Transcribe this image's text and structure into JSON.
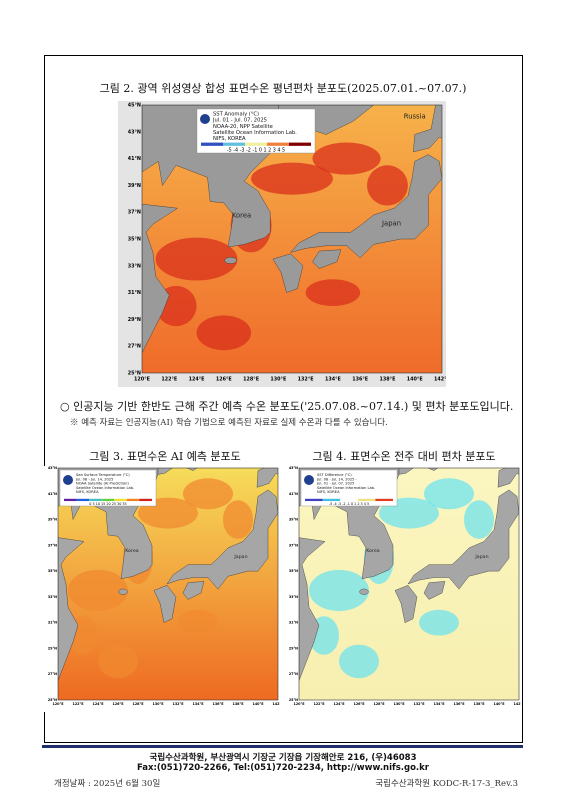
{
  "figure2": {
    "title": "그림 2. 광역 위성영상 합성 표면수온 평년편차 분포도(2025.07.01.~07.07.)",
    "legend": [
      "SST Anomaly (°C)",
      "Jul. 01 - Jul. 07, 2025",
      "NOAA-20, NPP Satellite",
      "Satellite Ocean Information Lab.",
      "NIFS, KOREA"
    ],
    "scale": "-5 -4 -3 -2 -1 0 1 2 3 4 5",
    "labels": [
      "Russia",
      "Korea",
      "Japan"
    ],
    "lat_ticks": [
      "45°N",
      "43°N",
      "41°N",
      "39°N",
      "37°N",
      "35°N",
      "33°N",
      "31°N",
      "29°N",
      "27°N",
      "25°N"
    ],
    "lon_ticks": [
      "120°E",
      "122°E",
      "124°E",
      "126°E",
      "128°E",
      "130°E",
      "132°E",
      "134°E",
      "136°E",
      "138°E",
      "140°E",
      "142°E"
    ]
  },
  "bullet": "인공지능 기반 한반도 근해 주간 예측 수온 분포도('25.07.08.~07.14.) 및 편차 분포도입니다.",
  "note": "※ 예측 자료는 인공지능(AI) 학습 기법으로 예측된 자료로 실제 수온과 다를 수 있습니다.",
  "figure3": {
    "title": "그림 3. 표면수온 AI 예측 분포도",
    "legend": [
      "Sea Surface Temperature (°C)",
      "Jul. 08 - Jul. 14, 2025",
      "NOAA Satellite (AI Prediction)",
      "Satellite Ocean Information Lab.",
      "NIFS, KOREA"
    ],
    "scale": "0 5 10 15 20 25 30 35",
    "labels": [
      "Korea",
      "Japan"
    ],
    "lat_ticks": [
      "43°N",
      "41°N",
      "39°N",
      "37°N",
      "35°N",
      "33°N",
      "31°N",
      "29°N",
      "27°N",
      "25°N"
    ],
    "lon_ticks": [
      "120°E",
      "122°E",
      "124°E",
      "126°E",
      "128°E",
      "130°E",
      "132°E",
      "134°E",
      "136°E",
      "138°E",
      "140°E",
      "142°E"
    ]
  },
  "figure4": {
    "title": "그림 4. 표면수온 전주 대비 편차 분포도",
    "legend": [
      "SST Difference (°C)",
      "Jul. 08 - Jul. 14, 2025 -",
      "Jul. 01 - Jul. 07, 2025",
      "Satellite Ocean Information Lab.",
      "NIFS, KOREA"
    ],
    "scale": "-5 -4 -3 -2 -1 0 1 2 3 4 5",
    "labels": [
      "Korea",
      "Japan"
    ],
    "lat_ticks": [
      "43°N",
      "41°N",
      "39°N",
      "37°N",
      "35°N",
      "33°N",
      "31°N",
      "29°N",
      "27°N",
      "25°N"
    ],
    "lon_ticks": [
      "120°E",
      "122°E",
      "124°E",
      "126°E",
      "128°E",
      "130°E",
      "132°E",
      "134°E",
      "136°E",
      "138°E",
      "140°E",
      "142°E"
    ]
  },
  "footer": {
    "line1": "국립수산과학원, 부산광역시 기장군 기장읍 기장해안로 216, (우)46083",
    "line2": "Fax:(051)720-2266, Tel:(051)720-2234, http://www.nifs.go.kr"
  },
  "revision_date": "개정날짜 : 2025년 6월 30일",
  "doc_code": "국립수산과학원 KODC-R-17-3_Rev.3"
}
